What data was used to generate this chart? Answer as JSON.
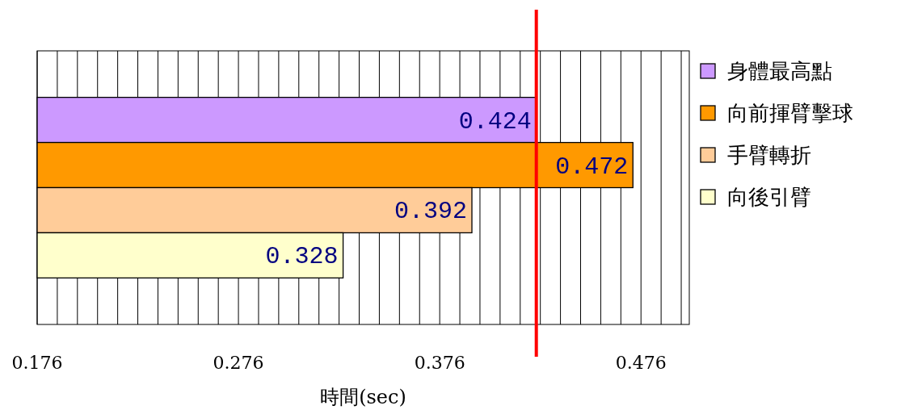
{
  "chart_data": {
    "type": "bar",
    "orientation": "horizontal",
    "xlabel": "時間(sec)",
    "categories": [
      null
    ],
    "series": [
      {
        "name": "身體最高點",
        "color": "#cc99ff",
        "values": [
          0.424
        ]
      },
      {
        "name": "向前揮臂擊球",
        "color": "#ff9900",
        "values": [
          0.472
        ]
      },
      {
        "name": "手臂轉折",
        "color": "#ffcc99",
        "values": [
          0.392
        ]
      },
      {
        "name": "向後引臂",
        "color": "#ffffcc",
        "values": [
          0.328
        ]
      }
    ],
    "xlim": [
      0.176,
      0.5
    ],
    "xticks": [
      {
        "value": 0.176,
        "label": "0.176"
      },
      {
        "value": 0.186,
        "label": null
      },
      {
        "value": 0.196,
        "label": null
      },
      {
        "value": 0.206,
        "label": null
      },
      {
        "value": 0.216,
        "label": null
      },
      {
        "value": 0.226,
        "label": null
      },
      {
        "value": 0.236,
        "label": null
      },
      {
        "value": 0.246,
        "label": null
      },
      {
        "value": 0.256,
        "label": null
      },
      {
        "value": 0.266,
        "label": null
      },
      {
        "value": 0.276,
        "label": "0.276"
      },
      {
        "value": 0.286,
        "label": null
      },
      {
        "value": 0.296,
        "label": null
      },
      {
        "value": 0.306,
        "label": null
      },
      {
        "value": 0.316,
        "label": null
      },
      {
        "value": 0.326,
        "label": null
      },
      {
        "value": 0.336,
        "label": null
      },
      {
        "value": 0.346,
        "label": null
      },
      {
        "value": 0.356,
        "label": null
      },
      {
        "value": 0.366,
        "label": null
      },
      {
        "value": 0.376,
        "label": "0.376"
      },
      {
        "value": 0.386,
        "label": null
      },
      {
        "value": 0.396,
        "label": null
      },
      {
        "value": 0.406,
        "label": null
      },
      {
        "value": 0.416,
        "label": null
      },
      {
        "value": 0.426,
        "label": null
      },
      {
        "value": 0.436,
        "label": null
      },
      {
        "value": 0.446,
        "label": null
      },
      {
        "value": 0.456,
        "label": null
      },
      {
        "value": 0.466,
        "label": null
      },
      {
        "value": 0.476,
        "label": "0.476"
      },
      {
        "value": 0.486,
        "label": null
      },
      {
        "value": 0.496,
        "label": null
      }
    ],
    "grid": "x",
    "legend": "right",
    "data_labels": true,
    "ref_lines": [
      {
        "axis": "x",
        "value": 0.424,
        "color": "#ff0000"
      }
    ]
  }
}
